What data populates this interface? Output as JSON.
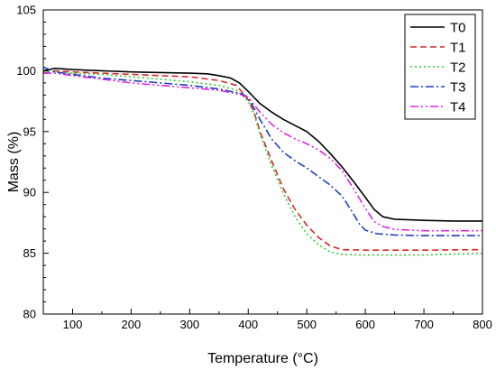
{
  "chart_data": {
    "type": "line",
    "xlabel": "Temperature (°C)",
    "ylabel": "Mass (%)",
    "xlim": [
      50,
      800
    ],
    "ylim": [
      80,
      105
    ],
    "xticks": [
      100,
      200,
      300,
      400,
      500,
      600,
      700,
      800
    ],
    "yticks": [
      80,
      85,
      90,
      95,
      100,
      105
    ],
    "grid": false,
    "legend_position": "top-right",
    "series": [
      {
        "name": "T0",
        "color": "#000000",
        "dash": "solid",
        "points": [
          [
            50,
            100.0
          ],
          [
            70,
            100.2
          ],
          [
            100,
            100.1
          ],
          [
            150,
            100.0
          ],
          [
            200,
            99.9
          ],
          [
            250,
            99.85
          ],
          [
            300,
            99.8
          ],
          [
            330,
            99.75
          ],
          [
            350,
            99.6
          ],
          [
            370,
            99.4
          ],
          [
            385,
            99.0
          ],
          [
            400,
            98.3
          ],
          [
            420,
            97.3
          ],
          [
            440,
            96.6
          ],
          [
            460,
            96.0
          ],
          [
            480,
            95.5
          ],
          [
            500,
            95.0
          ],
          [
            520,
            94.2
          ],
          [
            540,
            93.2
          ],
          [
            560,
            92.1
          ],
          [
            580,
            90.9
          ],
          [
            600,
            89.6
          ],
          [
            615,
            88.6
          ],
          [
            630,
            88.0
          ],
          [
            650,
            87.8
          ],
          [
            700,
            87.7
          ],
          [
            750,
            87.65
          ],
          [
            800,
            87.65
          ]
        ]
      },
      {
        "name": "T1",
        "color": "#d62728",
        "dash": "dashed",
        "points": [
          [
            50,
            99.8
          ],
          [
            70,
            100.0
          ],
          [
            100,
            99.9
          ],
          [
            150,
            99.8
          ],
          [
            200,
            99.7
          ],
          [
            250,
            99.6
          ],
          [
            300,
            99.5
          ],
          [
            350,
            99.2
          ],
          [
            380,
            98.8
          ],
          [
            400,
            97.6
          ],
          [
            410,
            96.6
          ],
          [
            420,
            95.0
          ],
          [
            440,
            92.6
          ],
          [
            460,
            90.3
          ],
          [
            480,
            88.6
          ],
          [
            500,
            87.3
          ],
          [
            520,
            86.3
          ],
          [
            540,
            85.6
          ],
          [
            560,
            85.3
          ],
          [
            600,
            85.25
          ],
          [
            700,
            85.25
          ],
          [
            800,
            85.3
          ]
        ]
      },
      {
        "name": "T2",
        "color": "#33cc33",
        "dash": "dotted",
        "points": [
          [
            50,
            99.9
          ],
          [
            70,
            99.9
          ],
          [
            100,
            99.8
          ],
          [
            150,
            99.7
          ],
          [
            200,
            99.5
          ],
          [
            250,
            99.3
          ],
          [
            300,
            99.1
          ],
          [
            350,
            98.8
          ],
          [
            380,
            98.4
          ],
          [
            400,
            97.5
          ],
          [
            410,
            96.4
          ],
          [
            420,
            94.8
          ],
          [
            440,
            92.2
          ],
          [
            460,
            89.9
          ],
          [
            480,
            88.0
          ],
          [
            500,
            86.6
          ],
          [
            520,
            85.7
          ],
          [
            540,
            85.1
          ],
          [
            560,
            84.9
          ],
          [
            600,
            84.85
          ],
          [
            700,
            84.85
          ],
          [
            800,
            85.0
          ]
        ]
      },
      {
        "name": "T3",
        "color": "#1f3fbf",
        "dash": "dashdot",
        "points": [
          [
            50,
            100.3
          ],
          [
            70,
            99.9
          ],
          [
            100,
            99.7
          ],
          [
            150,
            99.4
          ],
          [
            200,
            99.2
          ],
          [
            250,
            99.0
          ],
          [
            300,
            98.8
          ],
          [
            350,
            98.5
          ],
          [
            390,
            98.1
          ],
          [
            400,
            97.8
          ],
          [
            420,
            96.0
          ],
          [
            440,
            94.4
          ],
          [
            460,
            93.3
          ],
          [
            480,
            92.6
          ],
          [
            500,
            92.0
          ],
          [
            520,
            91.3
          ],
          [
            540,
            90.6
          ],
          [
            560,
            89.7
          ],
          [
            575,
            88.6
          ],
          [
            590,
            87.4
          ],
          [
            600,
            86.9
          ],
          [
            620,
            86.6
          ],
          [
            650,
            86.5
          ],
          [
            700,
            86.45
          ],
          [
            800,
            86.45
          ]
        ]
      },
      {
        "name": "T4",
        "color": "#e026e0",
        "dash": "dashdotdot",
        "points": [
          [
            50,
            99.8
          ],
          [
            70,
            99.8
          ],
          [
            100,
            99.6
          ],
          [
            150,
            99.3
          ],
          [
            200,
            99.0
          ],
          [
            250,
            98.8
          ],
          [
            300,
            98.6
          ],
          [
            350,
            98.4
          ],
          [
            390,
            98.0
          ],
          [
            400,
            97.8
          ],
          [
            420,
            96.6
          ],
          [
            440,
            95.6
          ],
          [
            460,
            94.9
          ],
          [
            480,
            94.4
          ],
          [
            500,
            94.0
          ],
          [
            520,
            93.5
          ],
          [
            540,
            92.8
          ],
          [
            560,
            91.8
          ],
          [
            580,
            90.3
          ],
          [
            600,
            88.7
          ],
          [
            615,
            87.6
          ],
          [
            630,
            87.2
          ],
          [
            650,
            86.95
          ],
          [
            700,
            86.85
          ],
          [
            800,
            86.85
          ]
        ]
      }
    ]
  }
}
